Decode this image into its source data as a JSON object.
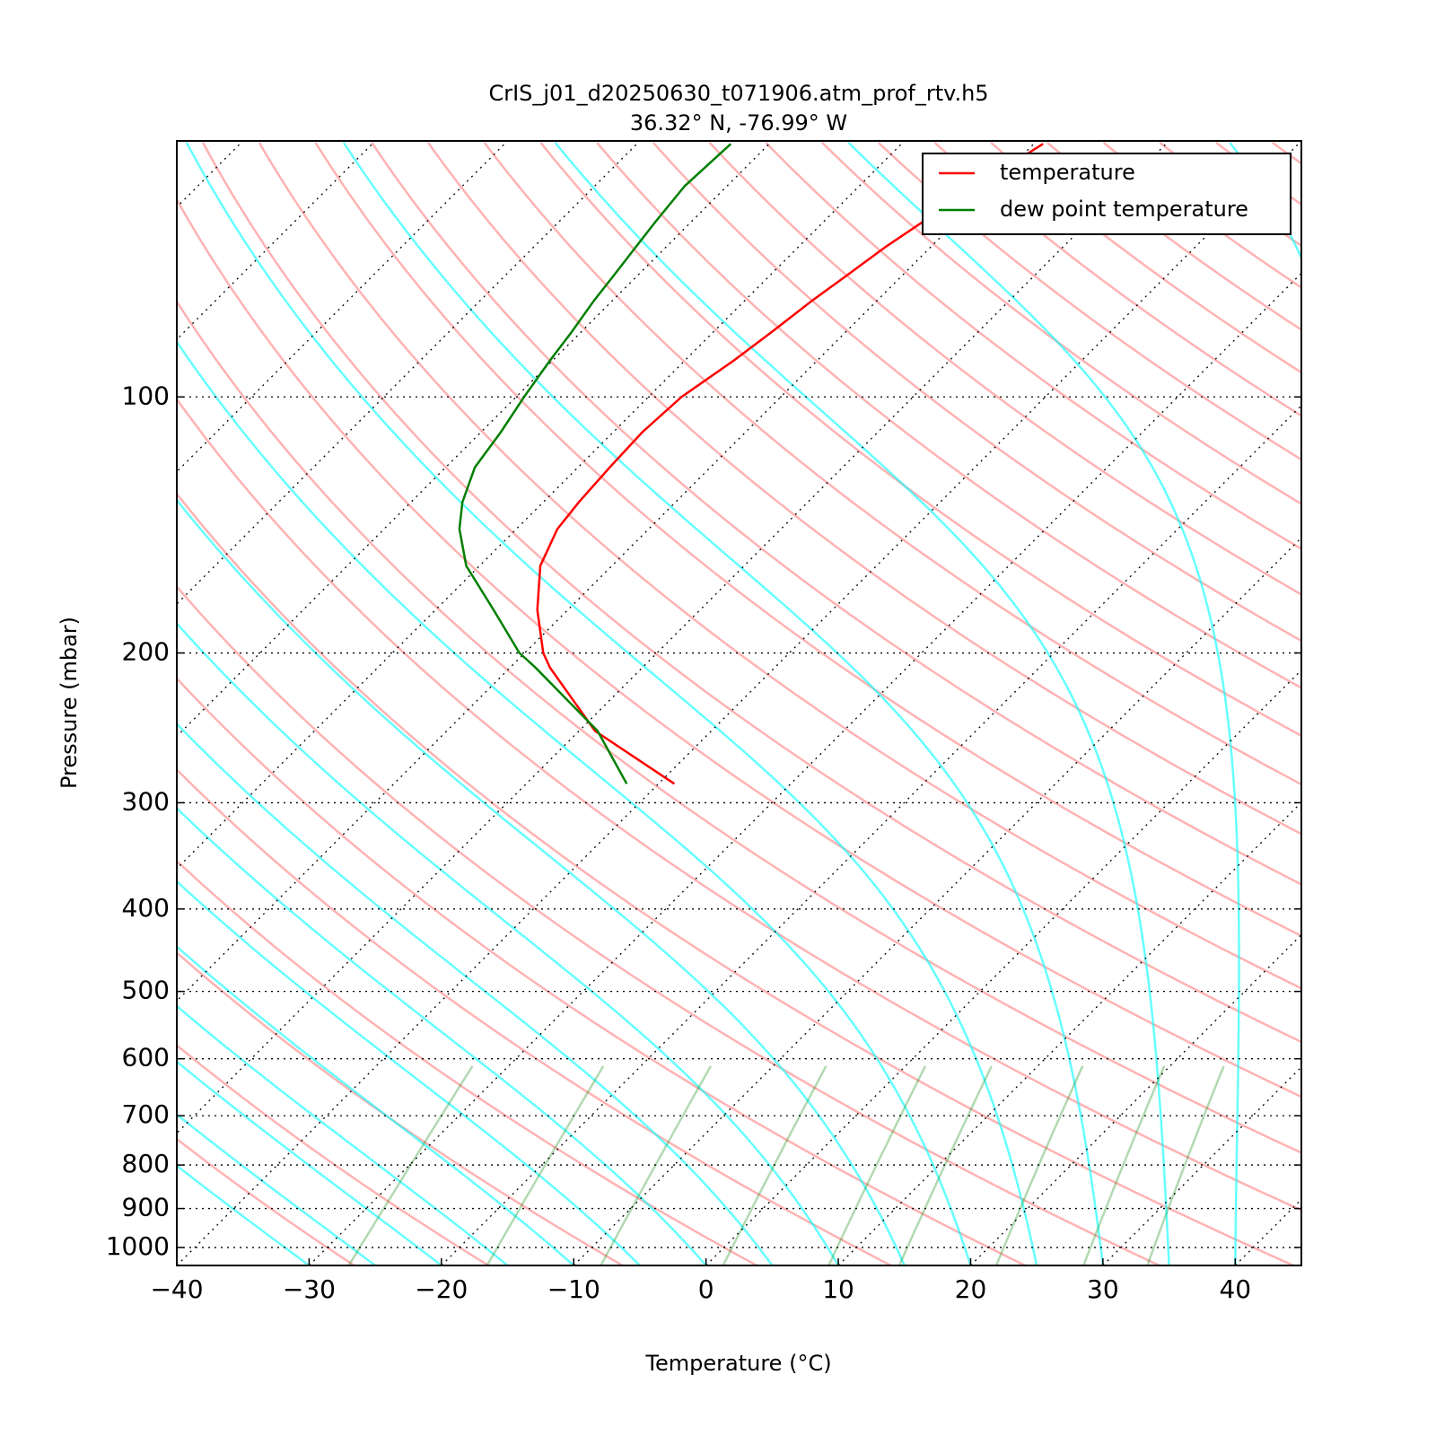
{
  "chart_data": {
    "type": "skewt",
    "title": "CrIS_j01_d20250630_t071906.atm_prof_rtv.h5",
    "subtitle": "36.32° N, -76.99° W",
    "x_label": "Temperature (°C)",
    "y_label": "Pressure (mbar)",
    "pressure": [
      285,
      247,
      208,
      200,
      178,
      158,
      143,
      133,
      121,
      110,
      100,
      90.6,
      84,
      77,
      72,
      66.5,
      62.3,
      56.5,
      50.4
    ],
    "series": [
      {
        "name": "temperature",
        "color": "#ff0000",
        "values": [
          -38.8,
          -48.8,
          -57,
          -58.6,
          -62.3,
          -65.4,
          -66.9,
          -67.3,
          -67.6,
          -67.8,
          -67.5,
          -66.3,
          -65.6,
          -64.9,
          -64.2,
          -63.4,
          -62.5,
          -61.2,
          -59.3
        ]
      },
      {
        "name": "dew point temperature",
        "color": "#007f00",
        "values": [
          -42.4,
          -48.6,
          -58.1,
          -60.4,
          -65.6,
          -71,
          -74.3,
          -76.1,
          -77.8,
          -78.5,
          -79.4,
          -80.2,
          -80.7,
          -81.4,
          -81.8,
          -82.3,
          -82.7,
          -83.2,
          -82.9
        ]
      }
    ],
    "xlim": [
      -40,
      45
    ],
    "xticks": [
      {
        "value": -40,
        "label": "−40"
      },
      {
        "value": -30,
        "label": "−30"
      },
      {
        "value": -20,
        "label": "−20"
      },
      {
        "value": -10,
        "label": "−10"
      },
      0,
      10,
      20,
      30,
      40
    ],
    "ylim": [
      1050,
      50
    ],
    "yticks": [
      100,
      200,
      300,
      400,
      500,
      600,
      700,
      800,
      900,
      1000
    ],
    "y_log": true,
    "grid": true,
    "legend": "upper right"
  }
}
